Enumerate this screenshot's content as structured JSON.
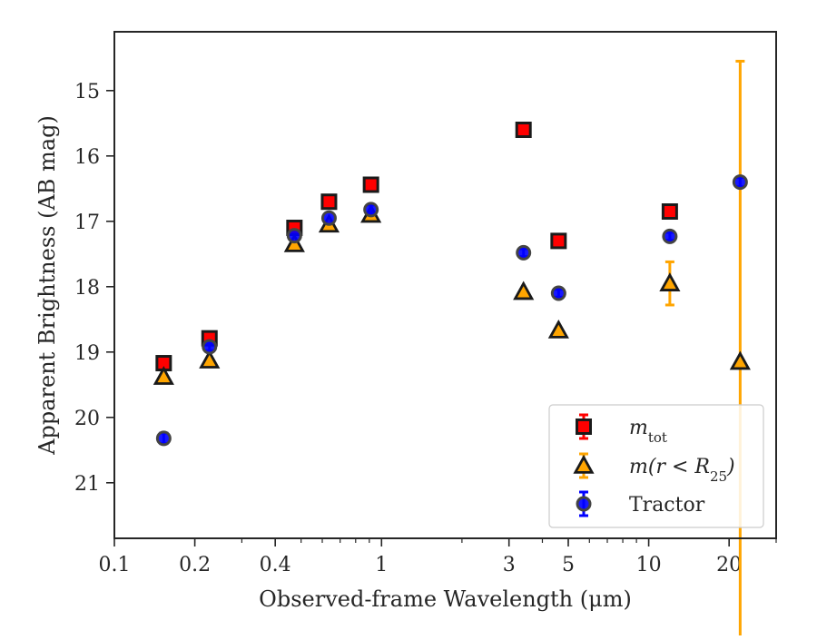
{
  "chart_data": {
    "type": "scatter",
    "xscale": "log",
    "yinverted": true,
    "xlabel": "Observed-frame Wavelength (μm)",
    "ylabel": "Apparent Brightness (AB mag)",
    "xlim": [
      0.1,
      30
    ],
    "ylim": [
      21.85,
      14.1
    ],
    "xticks": [
      {
        "value": 0.1,
        "label": "0.1"
      },
      {
        "value": 0.2,
        "label": "0.2"
      },
      {
        "value": 0.4,
        "label": "0.4"
      },
      {
        "value": 1,
        "label": "1"
      },
      {
        "value": 3,
        "label": "3"
      },
      {
        "value": 5,
        "label": "5"
      },
      {
        "value": 10,
        "label": "10"
      },
      {
        "value": 20,
        "label": "20"
      }
    ],
    "yticks": [
      {
        "value": 15,
        "label": "15"
      },
      {
        "value": 16,
        "label": "16"
      },
      {
        "value": 17,
        "label": "17"
      },
      {
        "value": 18,
        "label": "18"
      },
      {
        "value": 19,
        "label": "19"
      },
      {
        "value": 20,
        "label": "20"
      },
      {
        "value": 21,
        "label": "21"
      }
    ],
    "legend_position": "lower-right",
    "series": [
      {
        "name": "m_tot",
        "marker": "square",
        "color": "#ff0000",
        "edge_color": "#1a1a1a",
        "error_color": "#ff0000",
        "points": [
          {
            "x": 0.153,
            "y": 19.17,
            "err": 0.03
          },
          {
            "x": 0.227,
            "y": 18.79,
            "err": 0.03
          },
          {
            "x": 0.472,
            "y": 17.1,
            "err": 0.03
          },
          {
            "x": 0.636,
            "y": 16.7,
            "err": 0.03
          },
          {
            "x": 0.913,
            "y": 16.44,
            "err": 0.03
          },
          {
            "x": 3.4,
            "y": 15.6,
            "err": 0.03
          },
          {
            "x": 4.6,
            "y": 17.3,
            "err": 0.03
          },
          {
            "x": 12.0,
            "y": 16.85,
            "err": 0.03
          }
        ]
      },
      {
        "name": "m(r < R25)",
        "marker": "triangle",
        "color": "#ffa500",
        "edge_color": "#1a1a1a",
        "error_color": "#ffa500",
        "points": [
          {
            "x": 0.153,
            "y": 19.38,
            "err": 0.03
          },
          {
            "x": 0.227,
            "y": 19.13,
            "err": 0.03
          },
          {
            "x": 0.472,
            "y": 17.35,
            "err": 0.03
          },
          {
            "x": 0.636,
            "y": 17.05,
            "err": 0.03
          },
          {
            "x": 0.913,
            "y": 16.9,
            "err": 0.03
          },
          {
            "x": 3.4,
            "y": 18.08,
            "err": 0.03
          },
          {
            "x": 4.6,
            "y": 18.67,
            "err": 0.03
          },
          {
            "x": 12.0,
            "y": 17.95,
            "err": 0.33
          },
          {
            "x": 22.0,
            "y": 19.15,
            "err": 4.6
          }
        ]
      },
      {
        "name": "Tractor",
        "marker": "circle",
        "color": "#0000ff",
        "edge_color": "#444444",
        "error_color": "#0000ff",
        "points": [
          {
            "x": 0.153,
            "y": 20.32,
            "err": 0.08
          },
          {
            "x": 0.227,
            "y": 18.92,
            "err": 0.06
          },
          {
            "x": 0.472,
            "y": 17.22,
            "err": 0.05
          },
          {
            "x": 0.636,
            "y": 16.95,
            "err": 0.05
          },
          {
            "x": 0.913,
            "y": 16.82,
            "err": 0.07
          },
          {
            "x": 3.4,
            "y": 17.48,
            "err": 0.06
          },
          {
            "x": 4.6,
            "y": 18.1,
            "err": 0.06
          },
          {
            "x": 12.0,
            "y": 17.23,
            "err": 0.06
          },
          {
            "x": 22.0,
            "y": 16.4,
            "err": 0.07
          }
        ]
      }
    ]
  },
  "legend": {
    "items": [
      {
        "label": "m",
        "sub": "tot",
        "marker": "square"
      },
      {
        "label": "m(r < R",
        "sub": "25",
        "suffix": ")",
        "marker": "triangle"
      },
      {
        "label": "Tractor",
        "marker": "circle"
      }
    ]
  }
}
